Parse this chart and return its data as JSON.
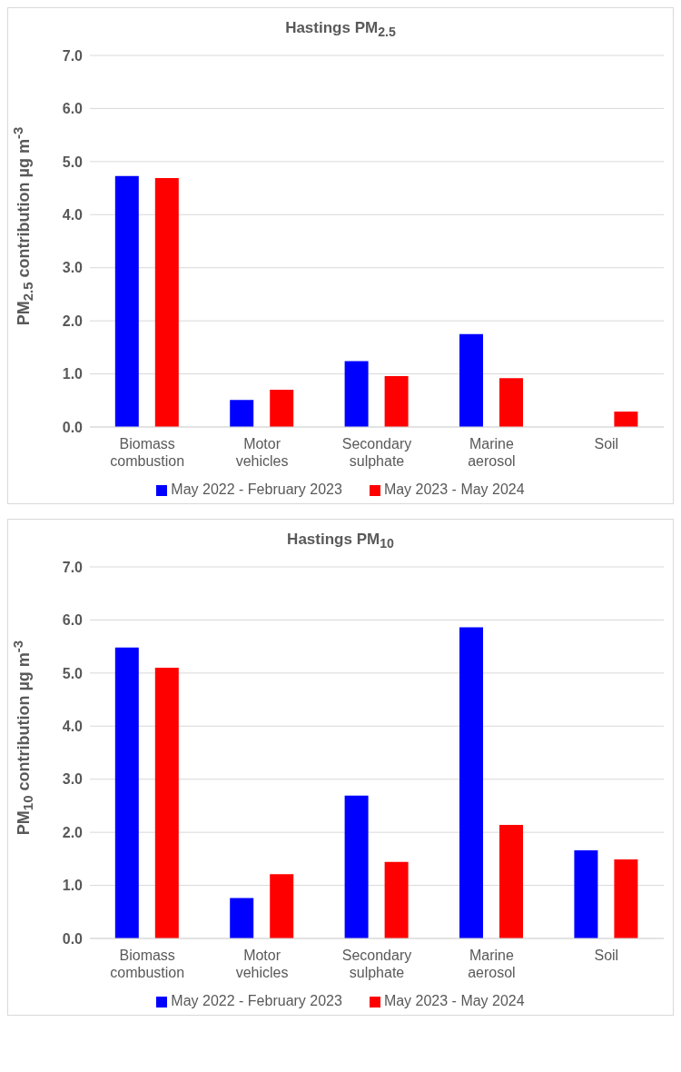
{
  "chart_data": [
    {
      "type": "bar",
      "title": "Hastings PM$_{2.5}$",
      "ylabel": "PM$_{2.5}$ contribution µg m$^{-3}$",
      "categories": [
        "Biomass combustion",
        "Motor vehicles",
        "Secondary sulphate",
        "Marine aerosol",
        "Soil"
      ],
      "series": [
        {
          "name": "May 2022 - February 2023",
          "color": "#0000ff",
          "values": [
            4.73,
            0.51,
            1.24,
            1.75,
            null
          ]
        },
        {
          "name": "May 2023 - May 2024",
          "color": "#ff0000",
          "values": [
            4.69,
            0.7,
            0.96,
            0.92,
            0.29
          ]
        }
      ],
      "ylim": [
        0,
        7
      ],
      "yticks": [
        {
          "value": 0,
          "label": "0.0"
        },
        {
          "value": 1,
          "label": "1.0"
        },
        {
          "value": 2,
          "label": "2.0"
        },
        {
          "value": 3,
          "label": "3.0"
        },
        {
          "value": 4,
          "label": "4.0"
        },
        {
          "value": 5,
          "label": "5.0"
        },
        {
          "value": 6,
          "label": "6.0"
        },
        {
          "value": 7,
          "label": "7.0"
        }
      ],
      "grid": "y",
      "legend": "bottom"
    },
    {
      "type": "bar",
      "title": "Hastings PM$_{10}$",
      "ylabel": "PM$_{10}$ contribution µg m$^{-3}$",
      "categories": [
        "Biomass combustion",
        "Motor vehicles",
        "Secondary sulphate",
        "Marine aerosol",
        "Soil"
      ],
      "series": [
        {
          "name": "May 2022 - February 2023",
          "color": "#0000ff",
          "values": [
            5.48,
            0.76,
            2.69,
            5.86,
            1.66
          ]
        },
        {
          "name": "May 2023 - May 2024",
          "color": "#ff0000",
          "values": [
            5.1,
            1.21,
            1.44,
            2.14,
            1.49
          ]
        }
      ],
      "ylim": [
        0,
        7
      ],
      "yticks": [
        {
          "value": 0,
          "label": "0.0"
        },
        {
          "value": 1,
          "label": "1.0"
        },
        {
          "value": 2,
          "label": "2.0"
        },
        {
          "value": 3,
          "label": "3.0"
        },
        {
          "value": 4,
          "label": "4.0"
        },
        {
          "value": 5,
          "label": "5.0"
        },
        {
          "value": 6,
          "label": "6.0"
        },
        {
          "value": 7,
          "label": "7.0"
        }
      ],
      "grid": "y",
      "legend": "bottom"
    }
  ]
}
